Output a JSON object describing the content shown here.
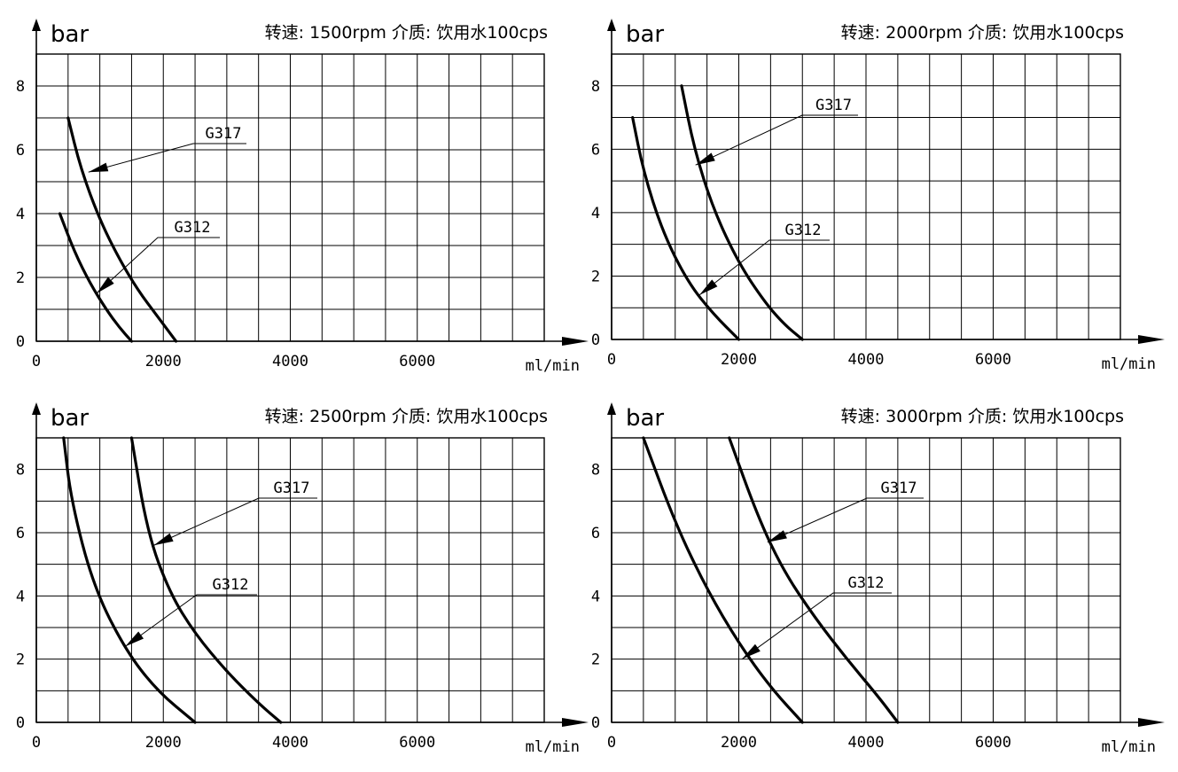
{
  "chart_data": [
    {
      "type": "line",
      "title": "转速: 1500rpm 介质: 饮用水100cps",
      "ylabel": "bar",
      "xlabel": "ml/min",
      "xticks": [
        0,
        2000,
        4000,
        6000
      ],
      "yticks": [
        0,
        2,
        4,
        6,
        8
      ],
      "xlim": [
        0,
        8000
      ],
      "ylim": [
        0,
        9
      ],
      "grid": true,
      "series": [
        {
          "name": "G317",
          "x": [
            500,
            700,
            1000,
            1300,
            1600,
            1900,
            2200
          ],
          "y": [
            7,
            5.4,
            3.8,
            2.6,
            1.6,
            0.8,
            0
          ]
        },
        {
          "name": "G312",
          "x": [
            370,
            600,
            850,
            1100,
            1300,
            1500
          ],
          "y": [
            4,
            2.8,
            1.8,
            1.0,
            0.45,
            0
          ]
        }
      ]
    },
    {
      "type": "line",
      "title": "转速: 2000rpm 介质: 饮用水100cps",
      "ylabel": "bar",
      "xlabel": "ml/min",
      "xticks": [
        0,
        2000,
        4000,
        6000
      ],
      "yticks": [
        0,
        2,
        4,
        6,
        8
      ],
      "xlim": [
        0,
        8000
      ],
      "ylim": [
        0,
        9
      ],
      "grid": true,
      "series": [
        {
          "name": "G317",
          "x": [
            1100,
            1300,
            1600,
            2000,
            2400,
            2700,
            3000
          ],
          "y": [
            8,
            6.0,
            4.1,
            2.4,
            1.2,
            0.5,
            0
          ]
        },
        {
          "name": "G312",
          "x": [
            330,
            500,
            800,
            1200,
            1600,
            2000
          ],
          "y": [
            7,
            5.3,
            3.4,
            1.8,
            0.8,
            0
          ]
        }
      ]
    },
    {
      "type": "line",
      "title": "转速: 2500rpm 介质: 饮用水100cps",
      "ylabel": "bar",
      "xlabel": "ml/min",
      "xticks": [
        0,
        2000,
        4000,
        6000
      ],
      "yticks": [
        0,
        2,
        4,
        6,
        8
      ],
      "xlim": [
        0,
        8000
      ],
      "ylim": [
        0,
        9
      ],
      "grid": true,
      "series": [
        {
          "name": "G317",
          "x": [
            1500,
            1750,
            2100,
            2500,
            3000,
            3500,
            3850
          ],
          "y": [
            9,
            6.0,
            4.1,
            2.8,
            1.6,
            0.6,
            0
          ]
        },
        {
          "name": "G312",
          "x": [
            430,
            550,
            900,
            1400,
            1900,
            2500
          ],
          "y": [
            9,
            7.0,
            4.3,
            2.3,
            1.0,
            0
          ]
        }
      ]
    },
    {
      "type": "line",
      "title": "转速: 3000rpm 介质: 饮用水100cps",
      "ylabel": "bar",
      "xlabel": "ml/min",
      "xticks": [
        0,
        2000,
        4000,
        6000
      ],
      "yticks": [
        0,
        2,
        4,
        6,
        8
      ],
      "xlim": [
        0,
        8000
      ],
      "ylim": [
        0,
        9
      ],
      "grid": true,
      "series": [
        {
          "name": "G317",
          "x": [
            1850,
            2300,
            2700,
            3200,
            3700,
            4200,
            4500
          ],
          "y": [
            9,
            6.5,
            4.8,
            3.3,
            2.0,
            0.8,
            0
          ]
        },
        {
          "name": "G312",
          "x": [
            500,
            1000,
            1500,
            2000,
            2500,
            3000
          ],
          "y": [
            9,
            6.3,
            4.2,
            2.5,
            1.1,
            0
          ]
        }
      ]
    }
  ]
}
